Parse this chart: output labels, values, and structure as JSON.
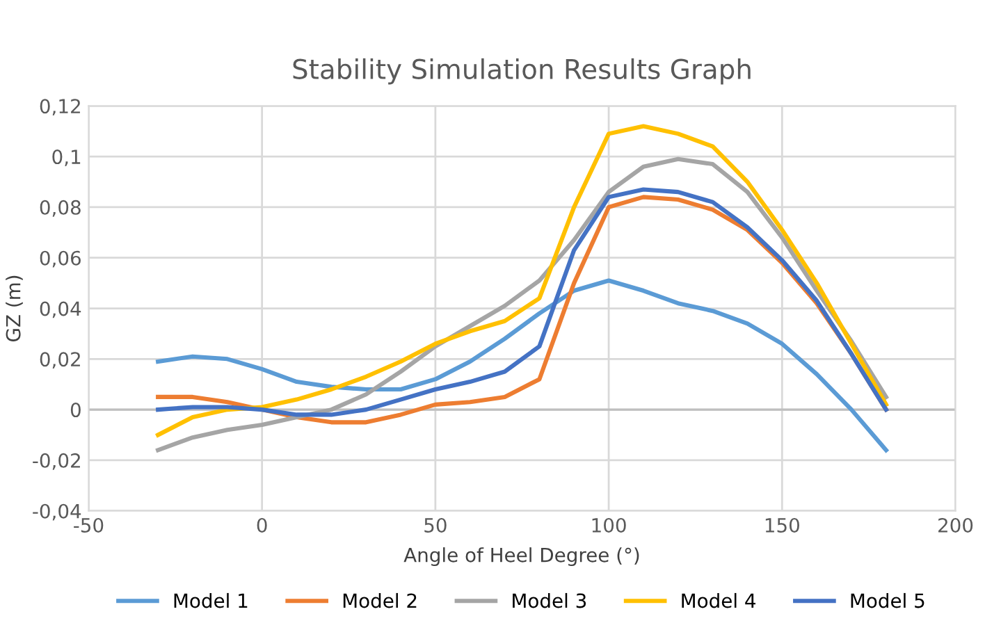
{
  "chart_data": {
    "type": "line",
    "title": "Stability Simulation Results Graph",
    "xlabel": "Angle of Heel Degree (°)",
    "ylabel": "GZ (m)",
    "x": [
      -30,
      -20,
      -10,
      0,
      10,
      20,
      30,
      40,
      50,
      60,
      70,
      80,
      90,
      100,
      110,
      120,
      130,
      140,
      150,
      160,
      170,
      180
    ],
    "series": [
      {
        "name": "Model 1",
        "color": "#5b9bd5",
        "values": [
          0.019,
          0.021,
          0.02,
          0.016,
          0.011,
          0.009,
          0.008,
          0.008,
          0.012,
          0.019,
          0.028,
          0.038,
          0.047,
          0.051,
          0.047,
          0.042,
          0.039,
          0.034,
          0.026,
          0.014,
          0.0,
          -0.016
        ]
      },
      {
        "name": "Model 2",
        "color": "#ed7d31",
        "values": [
          0.005,
          0.005,
          0.003,
          0.0,
          -0.003,
          -0.005,
          -0.005,
          -0.002,
          0.002,
          0.003,
          0.005,
          0.012,
          0.05,
          0.08,
          0.084,
          0.083,
          0.079,
          0.071,
          0.058,
          0.042,
          0.022,
          0.0
        ]
      },
      {
        "name": "Model 3",
        "color": "#a5a5a5",
        "values": [
          -0.016,
          -0.011,
          -0.008,
          -0.006,
          -0.003,
          0.0,
          0.006,
          0.015,
          0.025,
          0.033,
          0.041,
          0.051,
          0.067,
          0.086,
          0.096,
          0.099,
          0.097,
          0.086,
          0.068,
          0.047,
          0.027,
          0.005
        ]
      },
      {
        "name": "Model 4",
        "color": "#ffc000",
        "values": [
          -0.01,
          -0.003,
          0.0,
          0.001,
          0.004,
          0.008,
          0.013,
          0.019,
          0.026,
          0.031,
          0.035,
          0.044,
          0.08,
          0.109,
          0.112,
          0.109,
          0.104,
          0.09,
          0.071,
          0.05,
          0.026,
          0.002
        ]
      },
      {
        "name": "Model 5",
        "color": "#4472c4",
        "values": [
          0.0,
          0.001,
          0.001,
          0.0,
          -0.002,
          -0.002,
          0.0,
          0.004,
          0.008,
          0.011,
          0.015,
          0.025,
          0.063,
          0.084,
          0.087,
          0.086,
          0.082,
          0.072,
          0.059,
          0.043,
          0.022,
          0.0
        ]
      }
    ],
    "xlim": [
      -50,
      200
    ],
    "xticks": [
      -50,
      0,
      50,
      100,
      150,
      200
    ],
    "ylim": [
      -0.04,
      0.12
    ],
    "yticks": [
      {
        "value": -0.04,
        "label": "-0,04"
      },
      {
        "value": -0.02,
        "label": "-0,02"
      },
      {
        "value": 0,
        "label": "0"
      },
      {
        "value": 0.02,
        "label": "0,02"
      },
      {
        "value": 0.04,
        "label": "0,04"
      },
      {
        "value": 0.06,
        "label": "0,06"
      },
      {
        "value": 0.08,
        "label": "0,08"
      },
      {
        "value": 0.1,
        "label": "0,1"
      },
      {
        "value": 0.12,
        "label": "0,12"
      }
    ],
    "grid": true,
    "legend": "bottom",
    "marker": "none",
    "line_style": "solid"
  }
}
